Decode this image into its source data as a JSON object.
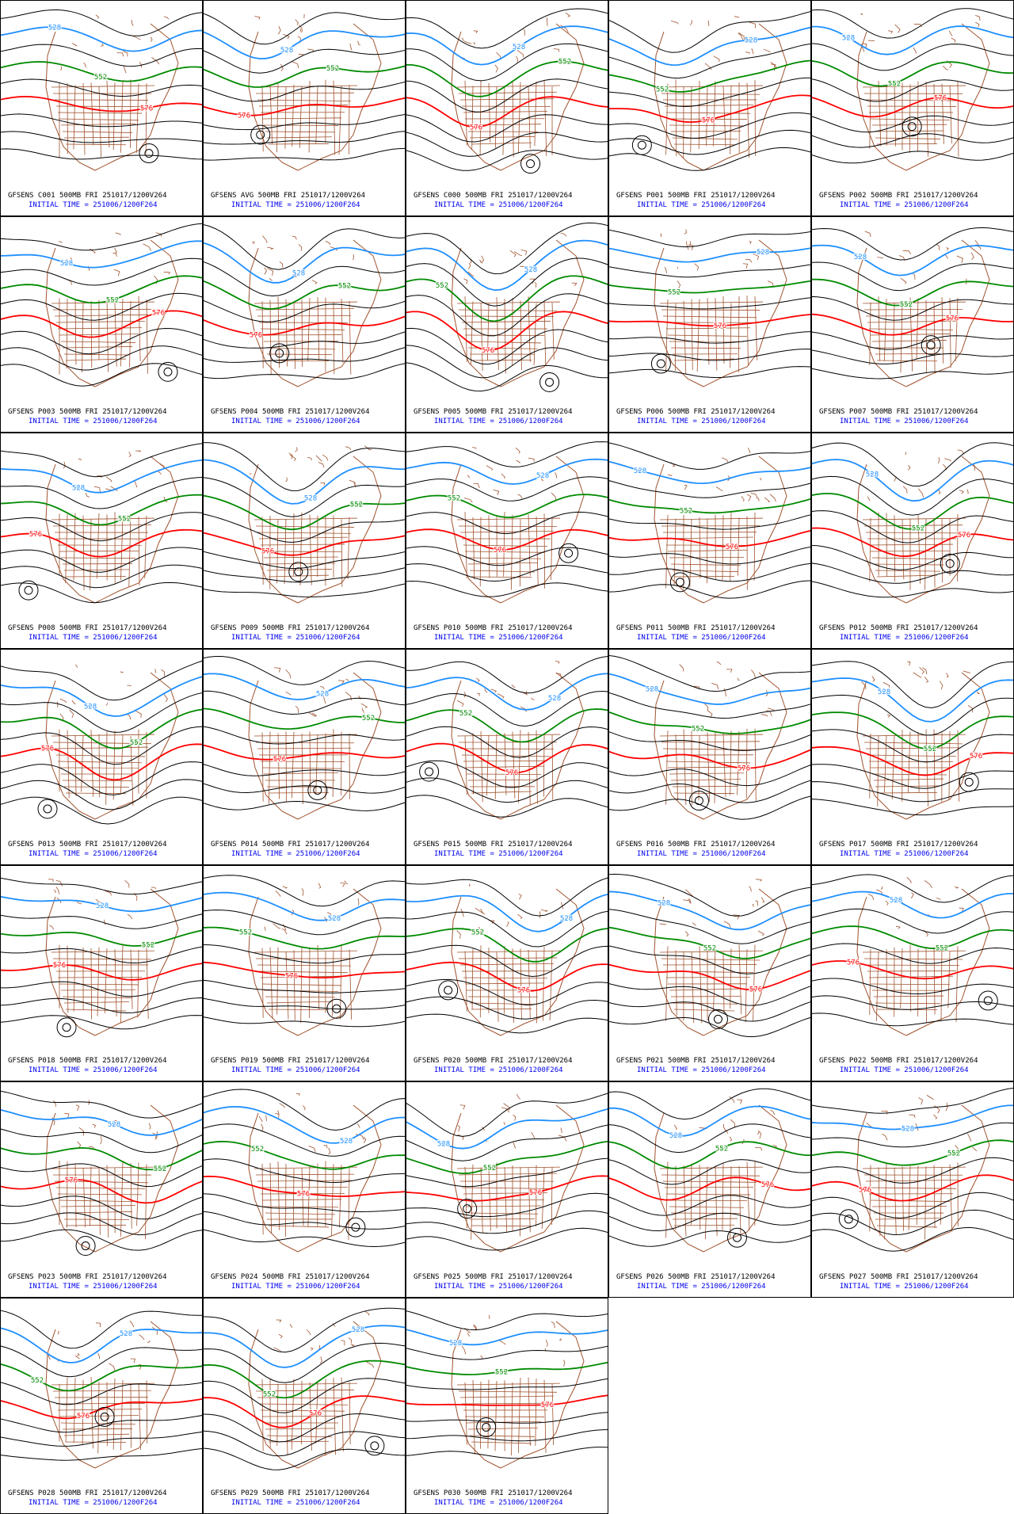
{
  "panels": [
    {
      "title": "GFSENS C001 500MB FRI 251017/1200V264",
      "subtitle": "INITIAL TIME = 251006/1200F264",
      "contours": [
        {
          "label": "528",
          "color": "#1e8fff"
        },
        {
          "label": "552",
          "color": "#008a00"
        },
        {
          "label": "576",
          "color": "#ff0000"
        }
      ]
    },
    {
      "title": "GFSENS AVG 500MB FRI 251017/1200V264",
      "subtitle": "INITIAL TIME = 251006/1200F264",
      "contours": [
        {
          "label": "528",
          "color": "#1e8fff"
        },
        {
          "label": "552",
          "color": "#008a00"
        },
        {
          "label": "576",
          "color": "#ff0000"
        }
      ]
    },
    {
      "title": "GFSENS C000 500MB FRI 251017/1200V264",
      "subtitle": "INITIAL TIME = 251006/1200F264",
      "contours": [
        {
          "label": "528",
          "color": "#1e8fff"
        },
        {
          "label": "552",
          "color": "#008a00"
        },
        {
          "label": "576",
          "color": "#ff0000"
        }
      ]
    },
    {
      "title": "GFSENS P001 500MB FRI 251017/1200V264",
      "subtitle": "INITIAL TIME = 251006/1200F264",
      "contours": [
        {
          "label": "528",
          "color": "#1e8fff"
        },
        {
          "label": "552",
          "color": "#008a00"
        },
        {
          "label": "576",
          "color": "#ff0000"
        }
      ]
    },
    {
      "title": "GFSENS P002 500MB FRI 251017/1200V264",
      "subtitle": "INITIAL TIME = 251006/1200F264",
      "contours": [
        {
          "label": "528",
          "color": "#1e8fff"
        },
        {
          "label": "552",
          "color": "#008a00"
        },
        {
          "label": "576",
          "color": "#ff0000"
        }
      ]
    },
    {
      "title": "GFSENS P003 500MB FRI 251017/1200V264",
      "subtitle": "INITIAL TIME = 251006/1200F264",
      "contours": [
        {
          "label": "528",
          "color": "#1e8fff"
        },
        {
          "label": "552",
          "color": "#008a00"
        },
        {
          "label": "576",
          "color": "#ff0000"
        }
      ]
    },
    {
      "title": "GFSENS P004 500MB FRI 251017/1200V264",
      "subtitle": "INITIAL TIME = 251006/1200F264",
      "contours": [
        {
          "label": "528",
          "color": "#1e8fff"
        },
        {
          "label": "552",
          "color": "#008a00"
        },
        {
          "label": "576",
          "color": "#ff0000"
        }
      ]
    },
    {
      "title": "GFSENS P005 500MB FRI 251017/1200V264",
      "subtitle": "INITIAL TIME = 251006/1200F264",
      "contours": [
        {
          "label": "528",
          "color": "#1e8fff"
        },
        {
          "label": "552",
          "color": "#008a00"
        },
        {
          "label": "576",
          "color": "#ff0000"
        }
      ]
    },
    {
      "title": "GFSENS P006 500MB FRI 251017/1200V264",
      "subtitle": "INITIAL TIME = 251006/1200F264",
      "contours": [
        {
          "label": "528",
          "color": "#1e8fff"
        },
        {
          "label": "552",
          "color": "#008a00"
        },
        {
          "label": "576",
          "color": "#ff0000"
        }
      ]
    },
    {
      "title": "GFSENS P007 500MB FRI 251017/1200V264",
      "subtitle": "INITIAL TIME = 251006/1200F264",
      "contours": [
        {
          "label": "528",
          "color": "#1e8fff"
        },
        {
          "label": "552",
          "color": "#008a00"
        },
        {
          "label": "576",
          "color": "#ff0000"
        }
      ]
    },
    {
      "title": "GFSENS P008 500MB FRI 251017/1200V264",
      "subtitle": "INITIAL TIME = 251006/1200F264",
      "contours": [
        {
          "label": "528",
          "color": "#1e8fff"
        },
        {
          "label": "552",
          "color": "#008a00"
        },
        {
          "label": "576",
          "color": "#ff0000"
        }
      ]
    },
    {
      "title": "GFSENS P009 500MB FRI 251017/1200V264",
      "subtitle": "INITIAL TIME = 251006/1200F264",
      "contours": [
        {
          "label": "528",
          "color": "#1e8fff"
        },
        {
          "label": "552",
          "color": "#008a00"
        },
        {
          "label": "576",
          "color": "#ff0000"
        }
      ]
    },
    {
      "title": "GFSENS P010 500MB FRI 251017/1200V264",
      "subtitle": "INITIAL TIME = 251006/1200F264",
      "contours": [
        {
          "label": "528",
          "color": "#1e8fff"
        },
        {
          "label": "552",
          "color": "#008a00"
        },
        {
          "label": "576",
          "color": "#ff0000"
        }
      ]
    },
    {
      "title": "GFSENS P011 500MB FRI 251017/1200V264",
      "subtitle": "INITIAL TIME = 251006/1200F264",
      "contours": [
        {
          "label": "528",
          "color": "#1e8fff"
        },
        {
          "label": "552",
          "color": "#008a00"
        },
        {
          "label": "576",
          "color": "#ff0000"
        }
      ]
    },
    {
      "title": "GFSENS P012 500MB FRI 251017/1200V264",
      "subtitle": "INITIAL TIME = 251006/1200F264",
      "contours": [
        {
          "label": "528",
          "color": "#1e8fff"
        },
        {
          "label": "552",
          "color": "#008a00"
        },
        {
          "label": "576",
          "color": "#ff0000"
        }
      ]
    },
    {
      "title": "GFSENS P013 500MB FRI 251017/1200V264",
      "subtitle": "INITIAL TIME = 251006/1200F264",
      "contours": [
        {
          "label": "528",
          "color": "#1e8fff"
        },
        {
          "label": "552",
          "color": "#008a00"
        },
        {
          "label": "576",
          "color": "#ff0000"
        }
      ]
    },
    {
      "title": "GFSENS P014 500MB FRI 251017/1200V264",
      "subtitle": "INITIAL TIME = 251006/1200F264",
      "contours": [
        {
          "label": "528",
          "color": "#1e8fff"
        },
        {
          "label": "552",
          "color": "#008a00"
        },
        {
          "label": "576",
          "color": "#ff0000"
        }
      ]
    },
    {
      "title": "GFSENS P015 500MB FRI 251017/1200V264",
      "subtitle": "INITIAL TIME = 251006/1200F264",
      "contours": [
        {
          "label": "528",
          "color": "#1e8fff"
        },
        {
          "label": "552",
          "color": "#008a00"
        },
        {
          "label": "576",
          "color": "#ff0000"
        }
      ]
    },
    {
      "title": "GFSENS P016 500MB FRI 251017/1200V264",
      "subtitle": "INITIAL TIME = 251006/1200F264",
      "contours": [
        {
          "label": "528",
          "color": "#1e8fff"
        },
        {
          "label": "552",
          "color": "#008a00"
        },
        {
          "label": "576",
          "color": "#ff0000"
        }
      ]
    },
    {
      "title": "GFSENS P017 500MB FRI 251017/1200V264",
      "subtitle": "INITIAL TIME = 251006/1200F264",
      "contours": [
        {
          "label": "528",
          "color": "#1e8fff"
        },
        {
          "label": "552",
          "color": "#008a00"
        },
        {
          "label": "576",
          "color": "#ff0000"
        }
      ]
    },
    {
      "title": "GFSENS P018 500MB FRI 251017/1200V264",
      "subtitle": "INITIAL TIME = 251006/1200F264",
      "contours": [
        {
          "label": "528",
          "color": "#1e8fff"
        },
        {
          "label": "552",
          "color": "#008a00"
        },
        {
          "label": "576",
          "color": "#ff0000"
        }
      ]
    },
    {
      "title": "GFSENS P019 500MB FRI 251017/1200V264",
      "subtitle": "INITIAL TIME = 251006/1200F264",
      "contours": [
        {
          "label": "528",
          "color": "#1e8fff"
        },
        {
          "label": "552",
          "color": "#008a00"
        },
        {
          "label": "576",
          "color": "#ff0000"
        }
      ]
    },
    {
      "title": "GFSENS P020 500MB FRI 251017/1200V264",
      "subtitle": "INITIAL TIME = 251006/1200F264",
      "contours": [
        {
          "label": "528",
          "color": "#1e8fff"
        },
        {
          "label": "552",
          "color": "#008a00"
        },
        {
          "label": "576",
          "color": "#ff0000"
        }
      ]
    },
    {
      "title": "GFSENS P021 500MB FRI 251017/1200V264",
      "subtitle": "INITIAL TIME = 251006/1200F264",
      "contours": [
        {
          "label": "528",
          "color": "#1e8fff"
        },
        {
          "label": "552",
          "color": "#008a00"
        },
        {
          "label": "576",
          "color": "#ff0000"
        }
      ]
    },
    {
      "title": "GFSENS P022 500MB FRI 251017/1200V264",
      "subtitle": "INITIAL TIME = 251006/1200F264",
      "contours": [
        {
          "label": "528",
          "color": "#1e8fff"
        },
        {
          "label": "552",
          "color": "#008a00"
        },
        {
          "label": "576",
          "color": "#ff0000"
        }
      ]
    },
    {
      "title": "GFSENS P023 500MB FRI 251017/1200V264",
      "subtitle": "INITIAL TIME = 251006/1200F264",
      "contours": [
        {
          "label": "528",
          "color": "#1e8fff"
        },
        {
          "label": "552",
          "color": "#008a00"
        },
        {
          "label": "576",
          "color": "#ff0000"
        }
      ]
    },
    {
      "title": "GFSENS P024 500MB FRI 251017/1200V264",
      "subtitle": "INITIAL TIME = 251006/1200F264",
      "contours": [
        {
          "label": "528",
          "color": "#1e8fff"
        },
        {
          "label": "552",
          "color": "#008a00"
        },
        {
          "label": "576",
          "color": "#ff0000"
        }
      ]
    },
    {
      "title": "GFSENS P025 500MB FRI 251017/1200V264",
      "subtitle": "INITIAL TIME = 251006/1200F264",
      "contours": [
        {
          "label": "528",
          "color": "#1e8fff"
        },
        {
          "label": "552",
          "color": "#008a00"
        },
        {
          "label": "576",
          "color": "#ff0000"
        }
      ]
    },
    {
      "title": "GFSENS P026 500MB FRI 251017/1200V264",
      "subtitle": "INITIAL TIME = 251006/1200F264",
      "contours": [
        {
          "label": "528",
          "color": "#1e8fff"
        },
        {
          "label": "552",
          "color": "#008a00"
        },
        {
          "label": "576",
          "color": "#ff0000"
        }
      ]
    },
    {
      "title": "GFSENS P027 500MB FRI 251017/1200V264",
      "subtitle": "INITIAL TIME = 251006/1200F264",
      "contours": [
        {
          "label": "528",
          "color": "#1e8fff"
        },
        {
          "label": "552",
          "color": "#008a00"
        },
        {
          "label": "576",
          "color": "#ff0000"
        }
      ]
    },
    {
      "title": "GFSENS P028 500MB FRI 251017/1200V264",
      "subtitle": "INITIAL TIME = 251006/1200F264",
      "contours": [
        {
          "label": "528",
          "color": "#1e8fff"
        },
        {
          "label": "552",
          "color": "#008a00"
        },
        {
          "label": "576",
          "color": "#ff0000"
        }
      ]
    },
    {
      "title": "GFSENS P029 500MB FRI 251017/1200V264",
      "subtitle": "INITIAL TIME = 251006/1200F264",
      "contours": [
        {
          "label": "528",
          "color": "#1e8fff"
        },
        {
          "label": "552",
          "color": "#008a00"
        },
        {
          "label": "576",
          "color": "#ff0000"
        }
      ]
    },
    {
      "title": "GFSENS P030 500MB FRI 251017/1200V264",
      "subtitle": "INITIAL TIME = 251006/1200F264",
      "contours": [
        {
          "label": "528",
          "color": "#1e8fff"
        },
        {
          "label": "552",
          "color": "#008a00"
        },
        {
          "label": "576",
          "color": "#ff0000"
        }
      ]
    }
  ]
}
